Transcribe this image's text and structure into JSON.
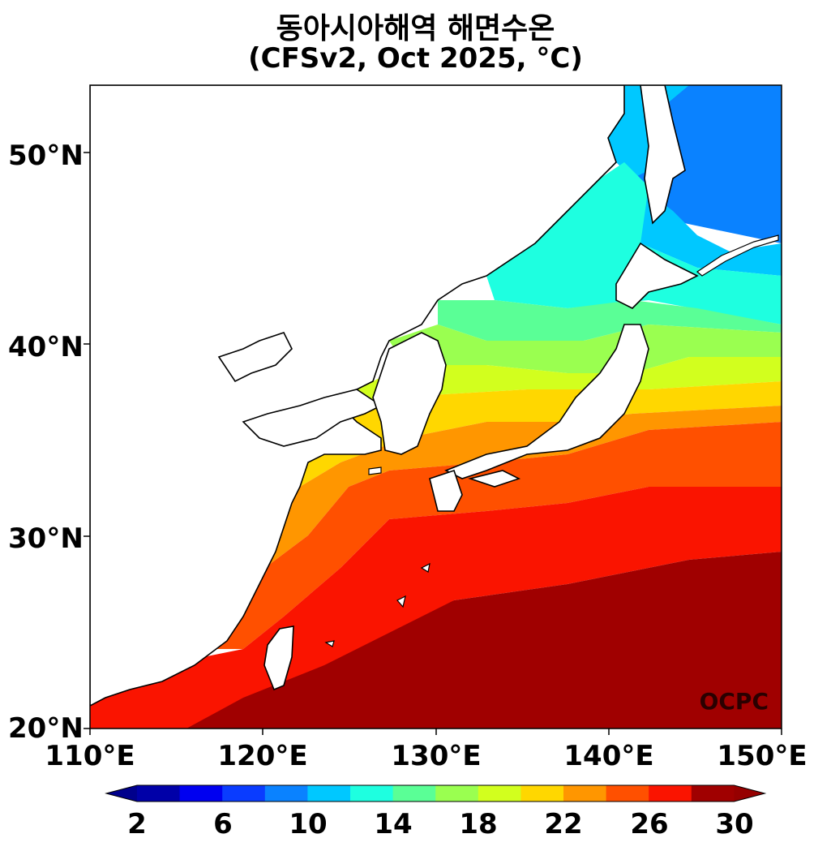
{
  "title_line1": "동아시아해역 해면수온",
  "title_line2": "(CFSv2, Oct 2025, °C)",
  "watermark": "OCPC",
  "map": {
    "lon_range": [
      110,
      150
    ],
    "lat_range": [
      20,
      53.5
    ],
    "x_ticks": [
      "110°E",
      "120°E",
      "130°E",
      "140°E",
      "150°E"
    ],
    "y_ticks": [
      "20°N",
      "30°N",
      "40°N",
      "50°N"
    ]
  },
  "colorbar": {
    "labels": [
      "2",
      "6",
      "10",
      "14",
      "18",
      "22",
      "26",
      "30"
    ],
    "levels": [
      2,
      4,
      6,
      8,
      10,
      12,
      14,
      16,
      18,
      20,
      22,
      24,
      26,
      28,
      30
    ],
    "colors": [
      "#0000a8",
      "#0000f0",
      "#0a3cff",
      "#0a82ff",
      "#00c8ff",
      "#1effe0",
      "#5aff96",
      "#9aff50",
      "#d2ff1e",
      "#ffd700",
      "#ff9600",
      "#ff5000",
      "#fa1400",
      "#a00000"
    ],
    "extend_low_color": "#00008c",
    "extend_high_color": "#960000"
  }
}
